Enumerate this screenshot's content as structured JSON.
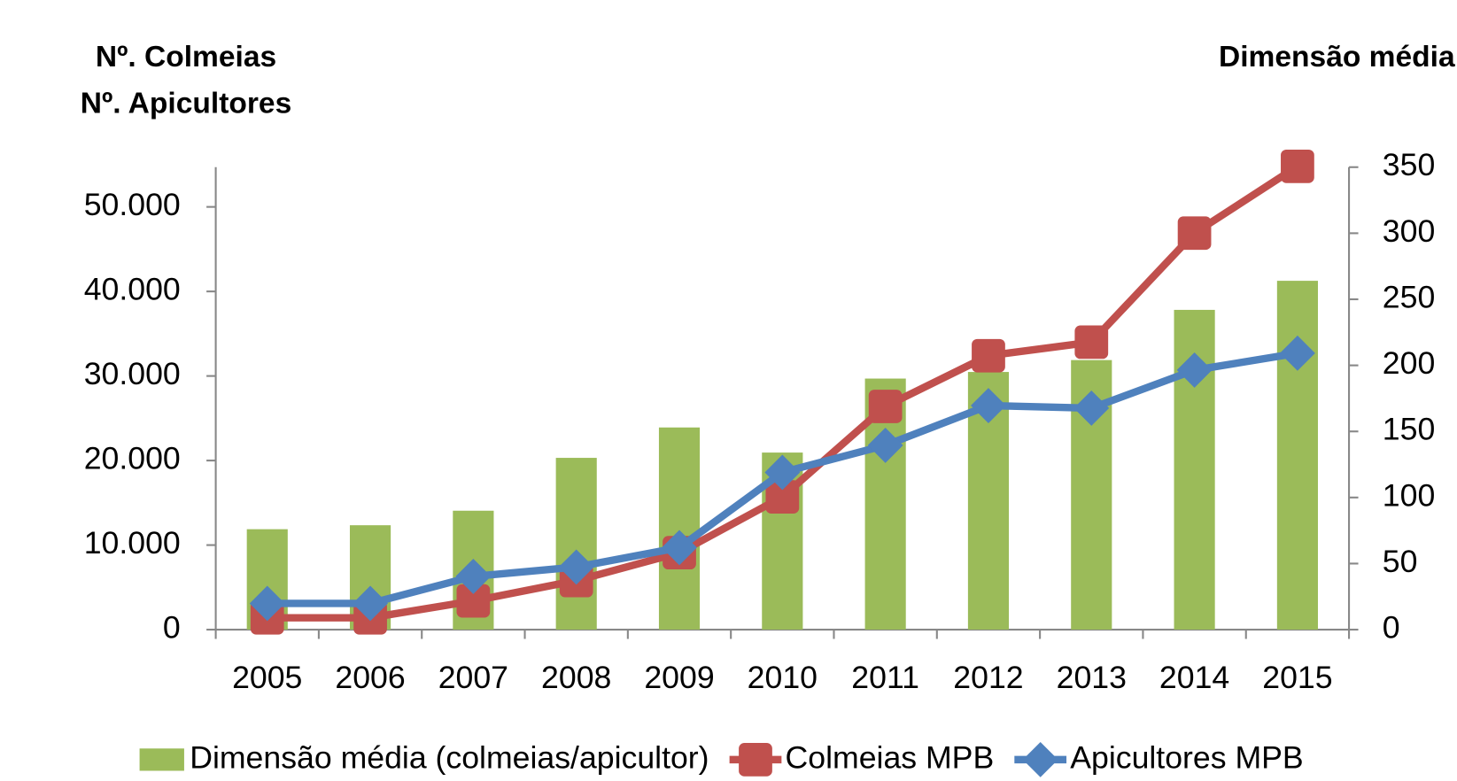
{
  "chart_data": {
    "type": "combo",
    "ylabel": [
      "Nº. Colmeias",
      "Nº. Apicultores"
    ],
    "y2label": "Dimensão média",
    "categories": [
      "2005",
      "2006",
      "2007",
      "2008",
      "2009",
      "2010",
      "2011",
      "2012",
      "2013",
      "2014",
      "2015"
    ],
    "series": [
      {
        "name": "Dimensão média (colmeias/apicultor)",
        "type": "bar",
        "axis": "y2",
        "color": "#9bbb59",
        "values": [
          76,
          79,
          90,
          130,
          153,
          134,
          190,
          195,
          204,
          242,
          264
        ]
      },
      {
        "name": "Colmeias MPB",
        "type": "line",
        "marker": "square",
        "color": "#c0504d",
        "values": [
          1400,
          1400,
          3400,
          5800,
          9100,
          15700,
          26400,
          32400,
          34000,
          46900,
          54800
        ]
      },
      {
        "name": "Apicultores MPB",
        "type": "line",
        "marker": "diamond",
        "color": "#4f81bd",
        "values": [
          3100,
          3100,
          6300,
          7400,
          9700,
          18600,
          21800,
          26500,
          26200,
          30700,
          32700
        ]
      }
    ],
    "ylim": [
      0,
      54700
    ],
    "yticks": [
      0,
      {
        "value": 10000,
        "label": "10.000"
      },
      {
        "value": 20000,
        "label": "20.000"
      },
      {
        "value": 30000,
        "label": "30.000"
      },
      {
        "value": 40000,
        "label": "40.000"
      },
      {
        "value": 50000,
        "label": "50.000"
      }
    ],
    "y2lim": [
      0,
      350
    ],
    "y2ticks": [
      0,
      50,
      100,
      150,
      200,
      250,
      300,
      350
    ],
    "legend": "bottom"
  }
}
